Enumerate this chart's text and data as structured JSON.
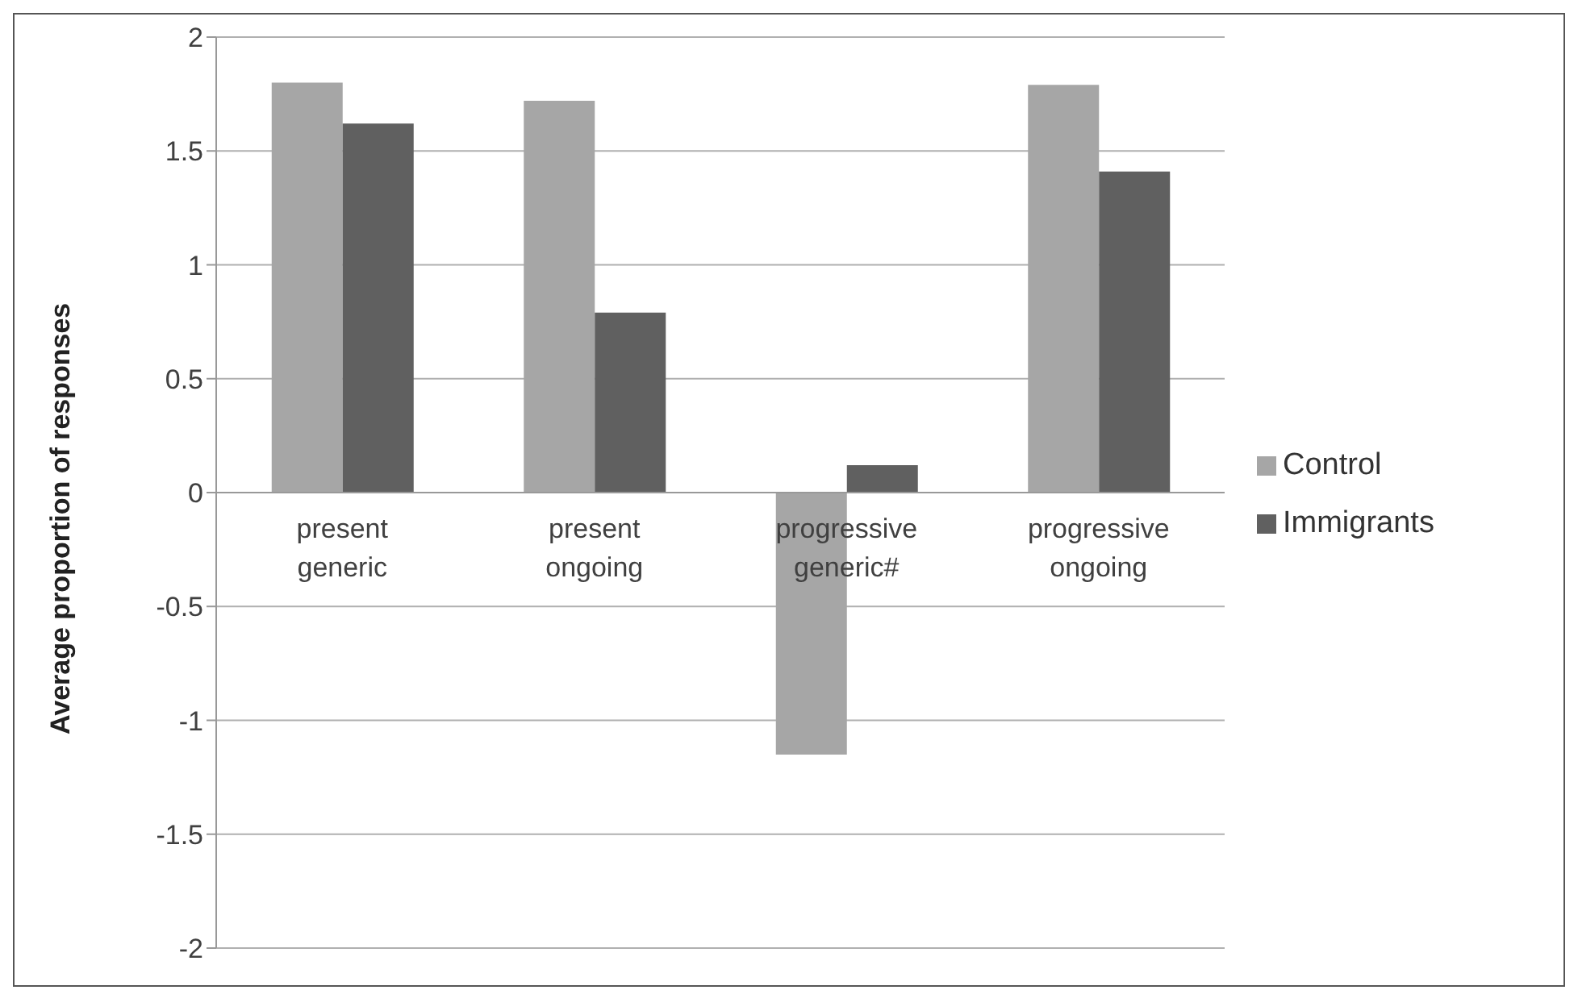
{
  "chart_data": {
    "type": "bar",
    "ylabel": "Average proportion of responses",
    "categories": [
      "present generic",
      "present ongoing",
      "progressive generic#",
      "progressive ongoing"
    ],
    "series": [
      {
        "name": "Control",
        "color": "#a6a6a6",
        "values": [
          1.8,
          1.72,
          -1.15,
          1.79
        ]
      },
      {
        "name": "Immigrants",
        "color": "#606060",
        "values": [
          1.62,
          0.79,
          0.12,
          1.41
        ]
      }
    ],
    "ylim": [
      -2,
      2
    ],
    "yticks": [
      -2,
      -1.5,
      -1,
      -0.5,
      0,
      0.5,
      1,
      1.5,
      2
    ],
    "grid": "y",
    "legend": "right"
  }
}
